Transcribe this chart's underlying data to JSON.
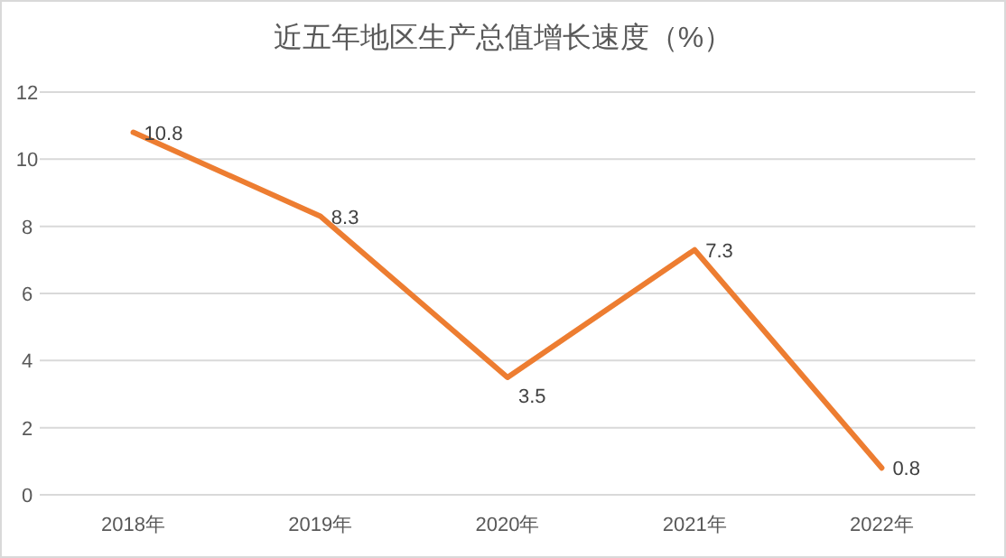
{
  "chart_data": {
    "type": "line",
    "title": "近五年地区生产总值增长速度（%）",
    "categories": [
      "2018年",
      "2019年",
      "2020年",
      "2021年",
      "2022年"
    ],
    "series": [
      {
        "color": "#ed7d31",
        "values": [
          10.8,
          8.3,
          3.5,
          7.3,
          0.8
        ]
      }
    ],
    "ylim": [
      0,
      12
    ],
    "yticks": [
      0,
      2,
      4,
      6,
      8,
      10,
      12
    ],
    "grid": "y",
    "data_labels": true,
    "marker": "none",
    "line_style": "solid"
  }
}
